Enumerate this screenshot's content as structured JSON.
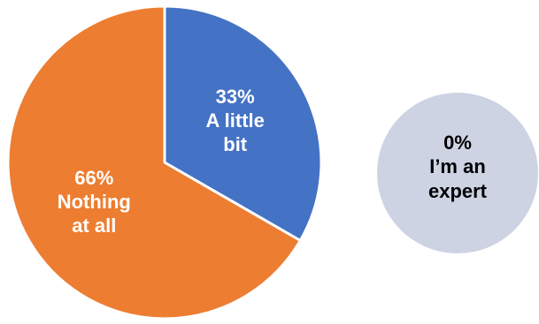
{
  "chart_data": {
    "type": "pie",
    "slices": [
      {
        "value": 33,
        "label_lines": [
          "33%",
          "A little",
          "bit"
        ],
        "color": "#4472C4"
      },
      {
        "value": 66,
        "label_lines": [
          "66%",
          "Nothing",
          "at all"
        ],
        "color": "#ED7D31"
      }
    ],
    "separate_category": {
      "value": 0,
      "label_lines": [
        "0%",
        "I’m an",
        "expert"
      ],
      "color": "#CDD3E3"
    }
  },
  "colors": {
    "background": "#FFFFFF",
    "slice_border": "#FFFFFF",
    "label_on_slice": "#FFFFFF",
    "label_on_circle": "#000000"
  }
}
